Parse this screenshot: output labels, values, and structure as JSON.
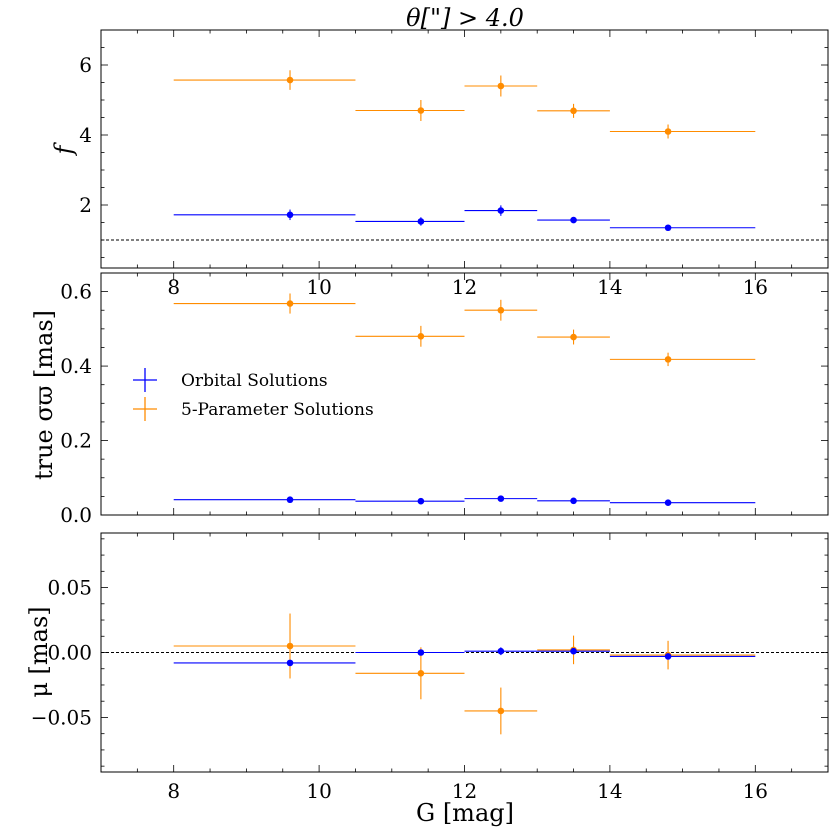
{
  "title": "θ[\"] > 4.0",
  "xlabel": "G [mag]",
  "legend": {
    "items": [
      {
        "label": "Orbital Solutions",
        "color": "#0000ff"
      },
      {
        "label": "5-Parameter Solutions",
        "color": "#ff8c00"
      }
    ]
  },
  "chart_data": [
    {
      "type": "scatter",
      "panel": "top",
      "ylabel": "f",
      "xlim": [
        7,
        17
      ],
      "ylim": [
        0.2,
        7
      ],
      "xticks": [
        8,
        10,
        12,
        14,
        16
      ],
      "xtick_labels": [
        "8",
        "10",
        "12",
        "14",
        "16"
      ],
      "yticks": [
        2,
        4,
        6
      ],
      "ytick_labels": [
        "2",
        "4",
        "6"
      ],
      "hline": 1.0,
      "series": [
        {
          "name": "Orbital Solutions",
          "color": "#0000ff",
          "points": [
            {
              "x": 9.6,
              "y": 1.72,
              "xlo": 8.0,
              "xhi": 10.5,
              "yerr": 0.15
            },
            {
              "x": 11.4,
              "y": 1.53,
              "xlo": 10.5,
              "xhi": 12.0,
              "yerr": 0.12
            },
            {
              "x": 12.5,
              "y": 1.84,
              "xlo": 12.0,
              "xhi": 13.0,
              "yerr": 0.15
            },
            {
              "x": 13.5,
              "y": 1.57,
              "xlo": 13.0,
              "xhi": 14.0,
              "yerr": 0.08
            },
            {
              "x": 14.8,
              "y": 1.35,
              "xlo": 14.0,
              "xhi": 16.0,
              "yerr": 0.06
            }
          ]
        },
        {
          "name": "5-Parameter Solutions",
          "color": "#ff8c00",
          "points": [
            {
              "x": 9.6,
              "y": 5.57,
              "xlo": 8.0,
              "xhi": 10.5,
              "yerr": 0.28
            },
            {
              "x": 11.4,
              "y": 4.7,
              "xlo": 10.5,
              "xhi": 12.0,
              "yerr": 0.3
            },
            {
              "x": 12.5,
              "y": 5.4,
              "xlo": 12.0,
              "xhi": 13.0,
              "yerr": 0.3
            },
            {
              "x": 13.5,
              "y": 4.69,
              "xlo": 13.0,
              "xhi": 14.0,
              "yerr": 0.2
            },
            {
              "x": 14.8,
              "y": 4.1,
              "xlo": 14.0,
              "xhi": 16.0,
              "yerr": 0.2
            }
          ]
        }
      ]
    },
    {
      "type": "scatter",
      "panel": "middle",
      "ylabel": "true σϖ [mas]",
      "xlim": [
        7,
        17
      ],
      "ylim": [
        0.0,
        0.65
      ],
      "xticks": [
        8,
        10,
        12,
        14,
        16
      ],
      "yticks": [
        0.0,
        0.2,
        0.4,
        0.6
      ],
      "ytick_labels": [
        "0.0",
        "0.2",
        "0.4",
        "0.6"
      ],
      "series": [
        {
          "name": "Orbital Solutions",
          "color": "#0000ff",
          "points": [
            {
              "x": 9.6,
              "y": 0.041,
              "xlo": 8.0,
              "xhi": 10.5,
              "yerr": 0.004
            },
            {
              "x": 11.4,
              "y": 0.037,
              "xlo": 10.5,
              "xhi": 12.0,
              "yerr": 0.004
            },
            {
              "x": 12.5,
              "y": 0.044,
              "xlo": 12.0,
              "xhi": 13.0,
              "yerr": 0.004
            },
            {
              "x": 13.5,
              "y": 0.038,
              "xlo": 13.0,
              "xhi": 14.0,
              "yerr": 0.003
            },
            {
              "x": 14.8,
              "y": 0.033,
              "xlo": 14.0,
              "xhi": 16.0,
              "yerr": 0.003
            }
          ]
        },
        {
          "name": "5-Parameter Solutions",
          "color": "#ff8c00",
          "points": [
            {
              "x": 9.6,
              "y": 0.568,
              "xlo": 8.0,
              "xhi": 10.5,
              "yerr": 0.027
            },
            {
              "x": 11.4,
              "y": 0.48,
              "xlo": 10.5,
              "xhi": 12.0,
              "yerr": 0.028
            },
            {
              "x": 12.5,
              "y": 0.55,
              "xlo": 12.0,
              "xhi": 13.0,
              "yerr": 0.028
            },
            {
              "x": 13.5,
              "y": 0.478,
              "xlo": 13.0,
              "xhi": 14.0,
              "yerr": 0.02
            },
            {
              "x": 14.8,
              "y": 0.418,
              "xlo": 14.0,
              "xhi": 16.0,
              "yerr": 0.018
            }
          ]
        }
      ]
    },
    {
      "type": "scatter",
      "panel": "bottom",
      "ylabel": "μ [mas]",
      "xlim": [
        7,
        17
      ],
      "ylim": [
        -0.092,
        0.092
      ],
      "xticks": [
        8,
        10,
        12,
        14,
        16
      ],
      "xtick_labels": [
        "8",
        "10",
        "12",
        "14",
        "16"
      ],
      "yticks": [
        -0.05,
        0.0,
        0.05
      ],
      "ytick_labels": [
        "−0.05",
        "0.00",
        "0.05"
      ],
      "hline": 0.0,
      "series": [
        {
          "name": "5-Parameter Solutions",
          "color": "#ff8c00",
          "points": [
            {
              "x": 9.6,
              "y": 0.005,
              "xlo": 8.0,
              "xhi": 10.5,
              "yerr": 0.025
            },
            {
              "x": 11.4,
              "y": -0.016,
              "xlo": 10.5,
              "xhi": 12.0,
              "yerr": 0.02
            },
            {
              "x": 12.5,
              "y": -0.045,
              "xlo": 12.0,
              "xhi": 13.0,
              "yerr": 0.018
            },
            {
              "x": 13.5,
              "y": 0.002,
              "xlo": 13.0,
              "xhi": 14.0,
              "yerr": 0.011
            },
            {
              "x": 14.8,
              "y": -0.002,
              "xlo": 14.0,
              "xhi": 16.0,
              "yerr": 0.011
            }
          ]
        },
        {
          "name": "Orbital Solutions",
          "color": "#0000ff",
          "points": [
            {
              "x": 9.6,
              "y": -0.008,
              "xlo": 8.0,
              "xhi": 10.5,
              "yerr": 0.002
            },
            {
              "x": 11.4,
              "y": 0.0,
              "xlo": 10.5,
              "xhi": 12.0,
              "yerr": 0.002
            },
            {
              "x": 12.5,
              "y": 0.001,
              "xlo": 12.0,
              "xhi": 13.0,
              "yerr": 0.003
            },
            {
              "x": 13.5,
              "y": 0.001,
              "xlo": 13.0,
              "xhi": 14.0,
              "yerr": 0.002
            },
            {
              "x": 14.8,
              "y": -0.003,
              "xlo": 14.0,
              "xhi": 16.0,
              "yerr": 0.002
            }
          ]
        }
      ]
    }
  ]
}
